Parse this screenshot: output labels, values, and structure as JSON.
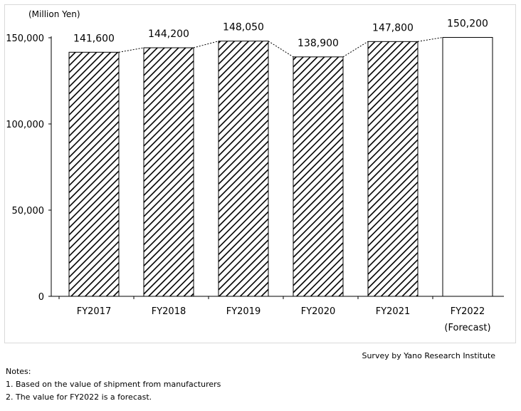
{
  "chart_data": {
    "type": "bar",
    "unit_label": "(Million Yen)",
    "categories": [
      "FY2017",
      "FY2018",
      "FY2019",
      "FY2020",
      "FY2021",
      "FY2022"
    ],
    "category_sublabels": [
      "",
      "",
      "",
      "",
      "",
      "(Forecast)"
    ],
    "values": [
      141600,
      144200,
      148050,
      138900,
      147800,
      150200
    ],
    "data_labels": [
      "141,600",
      "144,200",
      "148,050",
      "138,900",
      "147,800",
      "150,200"
    ],
    "forecast_flags": [
      false,
      false,
      false,
      false,
      false,
      true
    ],
    "ylim": [
      0,
      150000
    ],
    "yticks": [
      0,
      50000,
      100000,
      150000
    ],
    "ytick_labels": [
      "0",
      "50,000",
      "100,000",
      "150,000"
    ],
    "series_lines": "dotted lines connecting bar tops",
    "fill_pattern": "diagonal hatch (actual), white (forecast)",
    "grid": false,
    "legend": "none"
  },
  "source": "Survey by Yano Research Institute",
  "notes": {
    "heading": "Notes:",
    "items": [
      "1. Based on the value of shipment from manufacturers",
      "2. The value for FY2022 is a forecast."
    ]
  },
  "colors": {
    "bar_outline": "#000000",
    "hatch": "#000000",
    "forecast_fill": "#ffffff",
    "frame": "#d9d9d9"
  }
}
